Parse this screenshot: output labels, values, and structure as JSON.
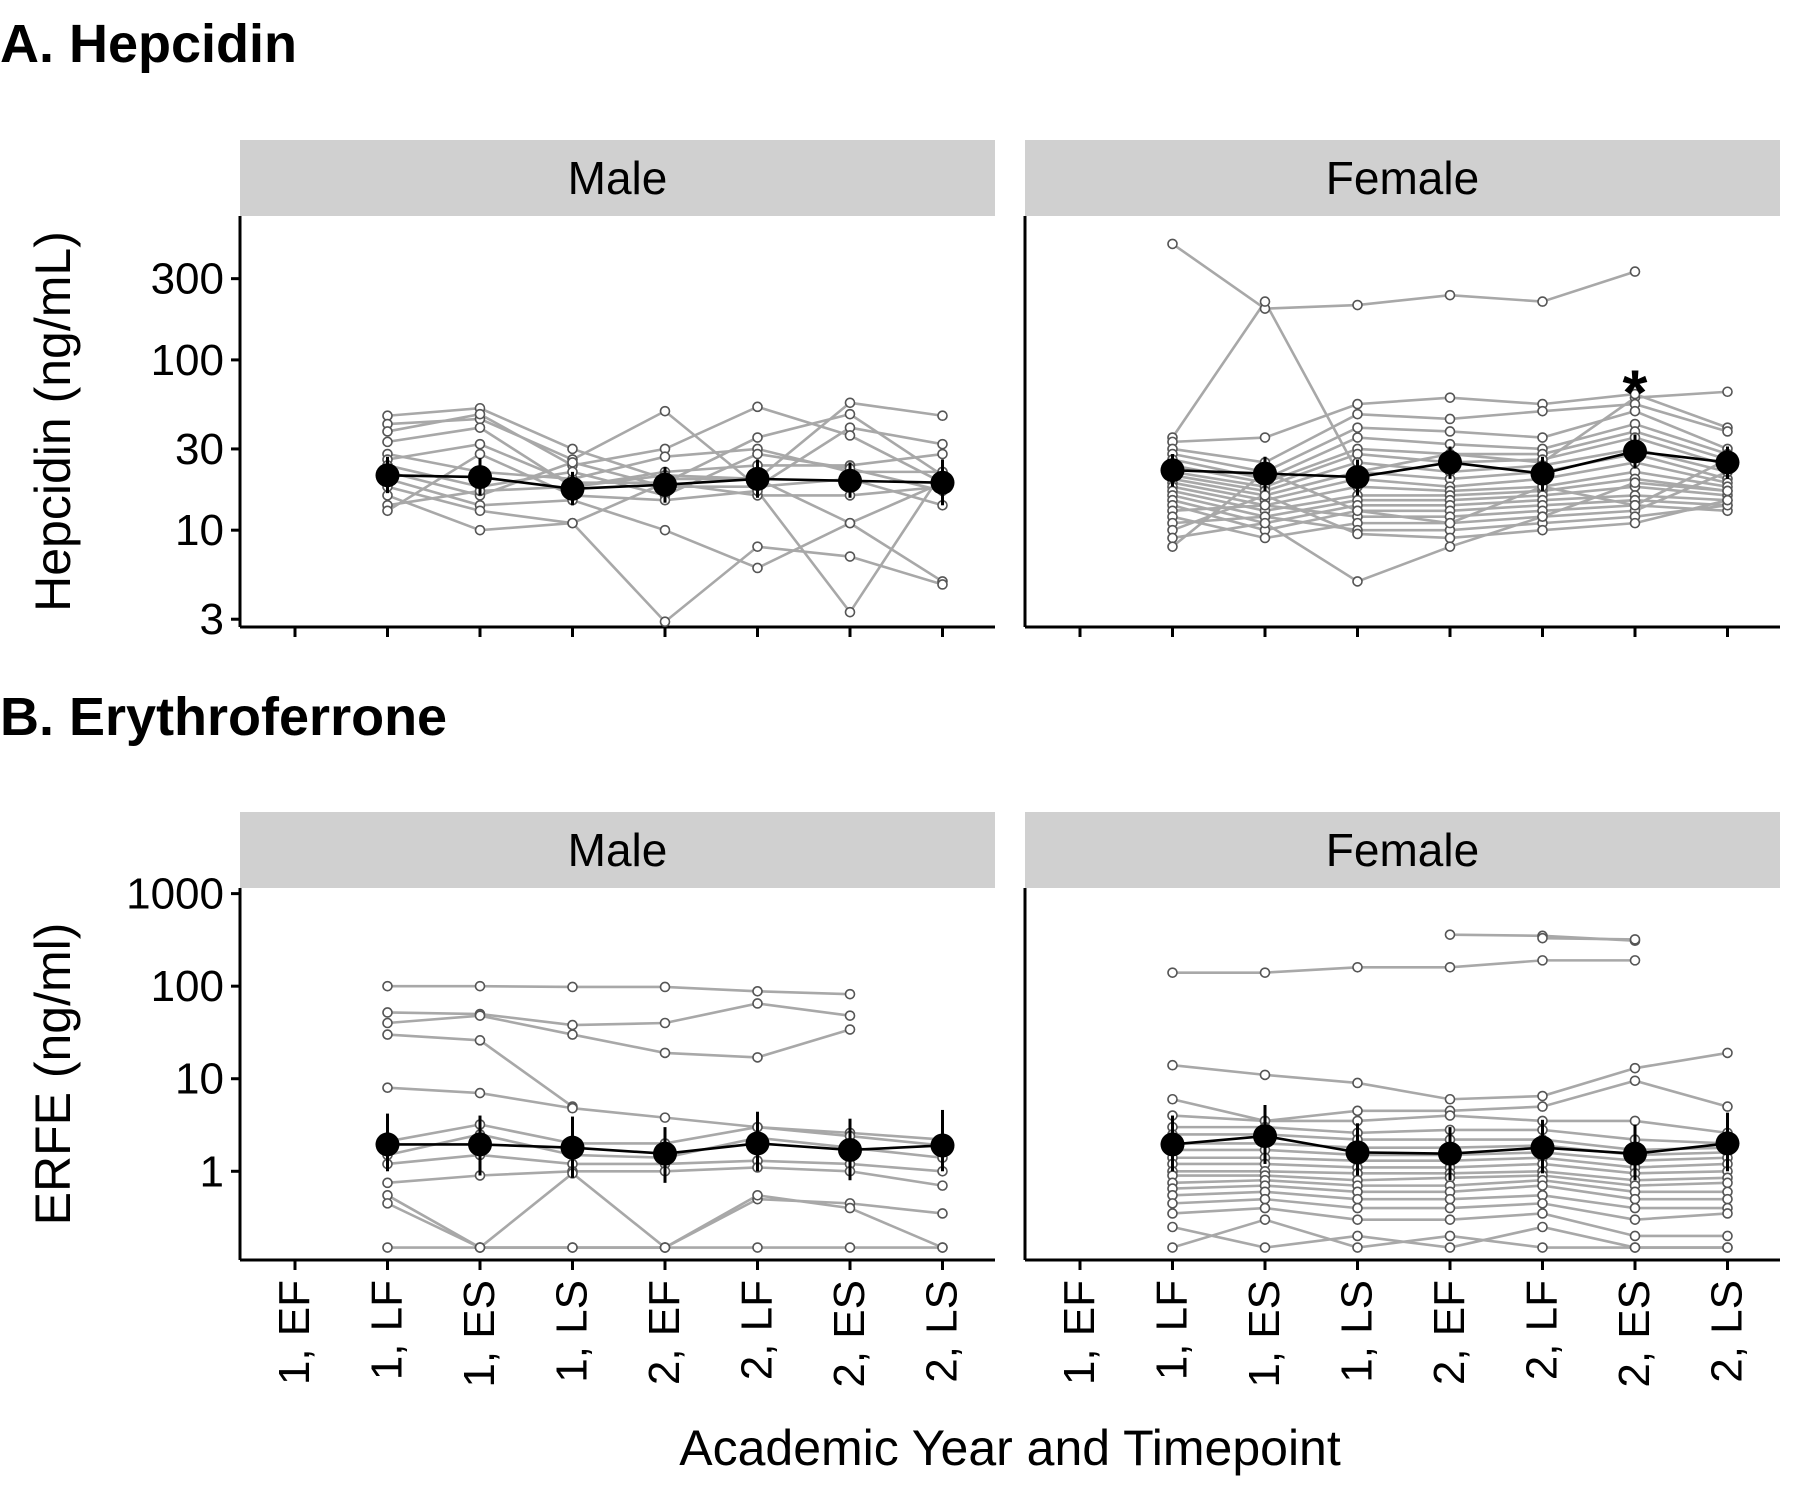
{
  "chart_data": [
    {
      "type": "line",
      "title": "A. Hepcidin",
      "ylabel": "Hepcidin (ng/mL)",
      "y_scale": "log",
      "ylim": [
        2.7,
        700
      ],
      "y_ticks": [
        3,
        10,
        30,
        100,
        300
      ],
      "y_tick_labels": [
        "3",
        "10",
        "30",
        "100",
        "300"
      ],
      "facets": [
        "Male",
        "Female"
      ],
      "categories": [
        "1, EF",
        "1, LF",
        "1, ES",
        "1, LS",
        "2, EF",
        "2, LF",
        "2, ES",
        "2, LS"
      ],
      "series": [
        {
          "facet": "Male",
          "role": "mean",
          "values": [
            null,
            21,
            20.5,
            17.5,
            18.5,
            20,
            19.5,
            19
          ],
          "error": [
            null,
            [
              16.5,
              27
            ],
            [
              16,
              26.5
            ],
            [
              14,
              22
            ],
            [
              14.5,
              23.5
            ],
            [
              15.5,
              26
            ],
            [
              15.5,
              25
            ],
            [
              14,
              26
            ]
          ]
        },
        {
          "facet": "Female",
          "role": "mean",
          "values": [
            null,
            22.5,
            21.5,
            20.5,
            25,
            21.5,
            29,
            25
          ],
          "error": [
            null,
            [
              18,
              28
            ],
            [
              17,
              27
            ],
            [
              16,
              26
            ],
            [
              20,
              31
            ],
            [
              17,
              27
            ],
            [
              23,
              36.5
            ],
            [
              20,
              31
            ]
          ],
          "significant": [
            false,
            false,
            false,
            false,
            false,
            false,
            true,
            false
          ],
          "annotation": "*"
        },
        {
          "facet": "Male",
          "role": "individual",
          "profiles": [
            [
              null,
              47,
              52,
              30,
              20,
              20,
              56,
              47
            ],
            [
              null,
              42,
              45,
              26,
              50,
              18,
              40,
              32
            ],
            [
              null,
              38,
              48,
              24,
              30,
              53,
              36,
              19
            ],
            [
              null,
              33,
              40,
              18,
              22,
              24,
              24,
              28
            ],
            [
              null,
              28,
              22,
              20,
              27,
              30,
              22,
              22
            ],
            [
              null,
              26,
              32,
              19,
              19,
              35,
              48,
              21
            ],
            [
              null,
              24,
              18,
              22,
              16,
              28,
              23,
              17
            ],
            [
              null,
              22,
              16,
              25,
              18,
              18,
              20,
              14
            ],
            [
              null,
              20,
              14,
              15,
              10,
              6,
              11,
              5
            ],
            [
              null,
              18,
              13,
              11,
              19,
              16,
              16,
              18
            ],
            [
              null,
              16,
              10,
              11,
              2.9,
              8,
              7,
              4.8
            ],
            [
              null,
              14,
              17,
              18,
              21,
              20,
              11,
              19
            ],
            [
              null,
              13,
              28,
              16,
              15,
              17,
              3.3,
              22
            ]
          ]
        },
        {
          "facet": "Female",
          "role": "individual",
          "profiles": [
            [
              null,
              480,
              200,
              210,
              240,
              220,
              330,
              null
            ],
            [
              null,
              35,
              220,
              22,
              28,
              25,
              60,
              65
            ],
            [
              null,
              33,
              35,
              55,
              60,
              55,
              63,
              40
            ],
            [
              null,
              30,
              25,
              48,
              45,
              50,
              55,
              38
            ],
            [
              null,
              28,
              22,
              40,
              38,
              35,
              50,
              30
            ],
            [
              null,
              26,
              20,
              35,
              32,
              30,
              42,
              28
            ],
            [
              null,
              24,
              19,
              30,
              28,
              28,
              38,
              26
            ],
            [
              null,
              22,
              18,
              28,
              25,
              26,
              35,
              24
            ],
            [
              null,
              21,
              17,
              25,
              22,
              24,
              30,
              22
            ],
            [
              null,
              20,
              16,
              22,
              20,
              22,
              28,
              20
            ],
            [
              null,
              19,
              15,
              20,
              18,
              20,
              25,
              19
            ],
            [
              null,
              18,
              14,
              18,
              17,
              18,
              22,
              18
            ],
            [
              null,
              17,
              13,
              16,
              16,
              17,
              20,
              17
            ],
            [
              null,
              16,
              12,
              15,
              15,
              16,
              18,
              16
            ],
            [
              null,
              15,
              11,
              14,
              14,
              15,
              16,
              15
            ],
            [
              null,
              14,
              10,
              13,
              13,
              14,
              15,
              14
            ],
            [
              null,
              13,
              14,
              12,
              12,
              13,
              14,
              13
            ],
            [
              null,
              12,
              9,
              11,
              11,
              12,
              13,
              22
            ],
            [
              null,
              11,
              12,
              10,
              10,
              11,
              12,
              14
            ],
            [
              null,
              10,
              16,
              9.5,
              9,
              10,
              11,
              15
            ],
            [
              null,
              9,
              11,
              5,
              8,
              12,
              19,
              17
            ],
            [
              null,
              8,
              22,
              13,
              11,
              18,
              14,
              26
            ]
          ]
        }
      ]
    },
    {
      "type": "line",
      "title": "B. Erythroferrone",
      "ylabel": "ERFE (ng/ml)",
      "xlabel": "Academic Year and Timepoint",
      "y_scale": "log",
      "ylim": [
        0.11,
        1150
      ],
      "y_ticks": [
        1,
        10,
        100,
        1000
      ],
      "y_tick_labels": [
        "1",
        "10",
        "100",
        "1000"
      ],
      "facets": [
        "Male",
        "Female"
      ],
      "categories": [
        "1, EF",
        "1, LF",
        "1, ES",
        "1, LS",
        "2, EF",
        "2, LF",
        "2, ES",
        "2, LS"
      ],
      "series": [
        {
          "facet": "Male",
          "role": "mean",
          "values": [
            null,
            1.95,
            1.95,
            1.8,
            1.55,
            2.0,
            1.7,
            1.9
          ],
          "error": [
            null,
            [
              1.0,
              4.2
            ],
            [
              0.9,
              4.0
            ],
            [
              0.85,
              3.9
            ],
            [
              0.75,
              3.0
            ],
            [
              1.0,
              4.4
            ],
            [
              0.8,
              3.7
            ],
            [
              1.0,
              4.6
            ]
          ]
        },
        {
          "facet": "Female",
          "role": "mean",
          "values": [
            null,
            1.95,
            2.4,
            1.6,
            1.55,
            1.8,
            1.55,
            2.0
          ],
          "error": [
            null,
            [
              1.0,
              4.0
            ],
            [
              1.2,
              5.2
            ],
            [
              0.9,
              3.3
            ],
            [
              0.8,
              3.0
            ],
            [
              0.95,
              3.6
            ],
            [
              0.8,
              3.2
            ],
            [
              1.0,
              4.3
            ]
          ]
        },
        {
          "facet": "Male",
          "role": "individual",
          "profiles": [
            [
              null,
              100,
              100,
              98,
              98,
              88,
              82,
              null
            ],
            [
              null,
              52,
              50,
              38,
              40,
              65,
              48,
              null
            ],
            [
              null,
              40,
              48,
              30,
              19,
              17,
              34,
              null
            ],
            [
              null,
              30,
              26,
              5,
              null,
              null,
              null,
              null
            ],
            [
              null,
              8,
              7,
              4.8,
              3.8,
              3.0,
              2.6,
              2.2
            ],
            [
              null,
              2.1,
              3.2,
              2.0,
              2.0,
              3.0,
              2.4,
              1.9
            ],
            [
              null,
              1.5,
              2.5,
              1.5,
              1.4,
              2.3,
              1.8,
              1.4
            ],
            [
              null,
              1.2,
              1.5,
              1.2,
              1.2,
              1.3,
              1.2,
              1.0
            ],
            [
              null,
              0.75,
              0.9,
              1.0,
              1.0,
              1.1,
              1.0,
              0.7
            ],
            [
              null,
              0.55,
              0.15,
              0.95,
              0.15,
              0.5,
              0.45,
              0.35
            ],
            [
              null,
              0.45,
              0.15,
              0.15,
              0.15,
              0.55,
              0.4,
              0.15
            ],
            [
              null,
              0.15,
              0.15,
              0.15,
              0.15,
              0.15,
              0.15,
              0.15
            ]
          ]
        },
        {
          "facet": "Female",
          "role": "individual",
          "profiles": [
            [
              null,
              null,
              null,
              null,
              360,
              350,
              310,
              null
            ],
            [
              null,
              null,
              null,
              null,
              null,
              330,
              320,
              null
            ],
            [
              null,
              140,
              140,
              160,
              160,
              190,
              190,
              null
            ],
            [
              null,
              14,
              11,
              9,
              6,
              6.5,
              13,
              19
            ],
            [
              null,
              6,
              3.5,
              4.5,
              4.5,
              5,
              9.5,
              5
            ],
            [
              null,
              4,
              3.5,
              3.5,
              4,
              3.5,
              3.5,
              2.6
            ],
            [
              null,
              3,
              3,
              2.6,
              2.8,
              2.8,
              2.2,
              2.0
            ],
            [
              null,
              2.5,
              2.5,
              2.2,
              2.2,
              2.2,
              1.7,
              1.8
            ],
            [
              null,
              2.0,
              2.0,
              1.8,
              1.8,
              1.9,
              1.5,
              1.6
            ],
            [
              null,
              1.7,
              1.7,
              1.5,
              1.5,
              1.6,
              1.3,
              1.4
            ],
            [
              null,
              1.4,
              1.4,
              1.3,
              1.3,
              1.4,
              1.1,
              1.2
            ],
            [
              null,
              1.2,
              1.2,
              1.1,
              1.1,
              1.2,
              0.95,
              1.0
            ],
            [
              null,
              1.0,
              1.0,
              0.95,
              0.95,
              1.0,
              0.8,
              0.85
            ],
            [
              null,
              0.9,
              0.9,
              0.8,
              0.85,
              0.9,
              0.7,
              0.75
            ],
            [
              null,
              0.75,
              0.8,
              0.7,
              0.7,
              0.8,
              0.6,
              0.6
            ],
            [
              null,
              0.65,
              0.7,
              0.6,
              0.6,
              0.7,
              0.5,
              0.5
            ],
            [
              null,
              0.55,
              0.6,
              0.5,
              0.5,
              0.55,
              0.4,
              0.4
            ],
            [
              null,
              0.45,
              0.5,
              0.4,
              0.4,
              0.45,
              0.3,
              0.35
            ],
            [
              null,
              0.35,
              0.4,
              0.3,
              0.3,
              0.35,
              0.2,
              0.2
            ],
            [
              null,
              0.25,
              0.15,
              0.2,
              0.15,
              0.25,
              0.15,
              0.15
            ],
            [
              null,
              0.15,
              0.3,
              0.15,
              0.2,
              0.15,
              0.15,
              0.15
            ]
          ]
        }
      ]
    }
  ],
  "colors": {
    "individual_line": "#a8a8a8",
    "individual_point_stroke": "#555555",
    "mean": "#000000",
    "strip_background": "#d0d0d0"
  }
}
